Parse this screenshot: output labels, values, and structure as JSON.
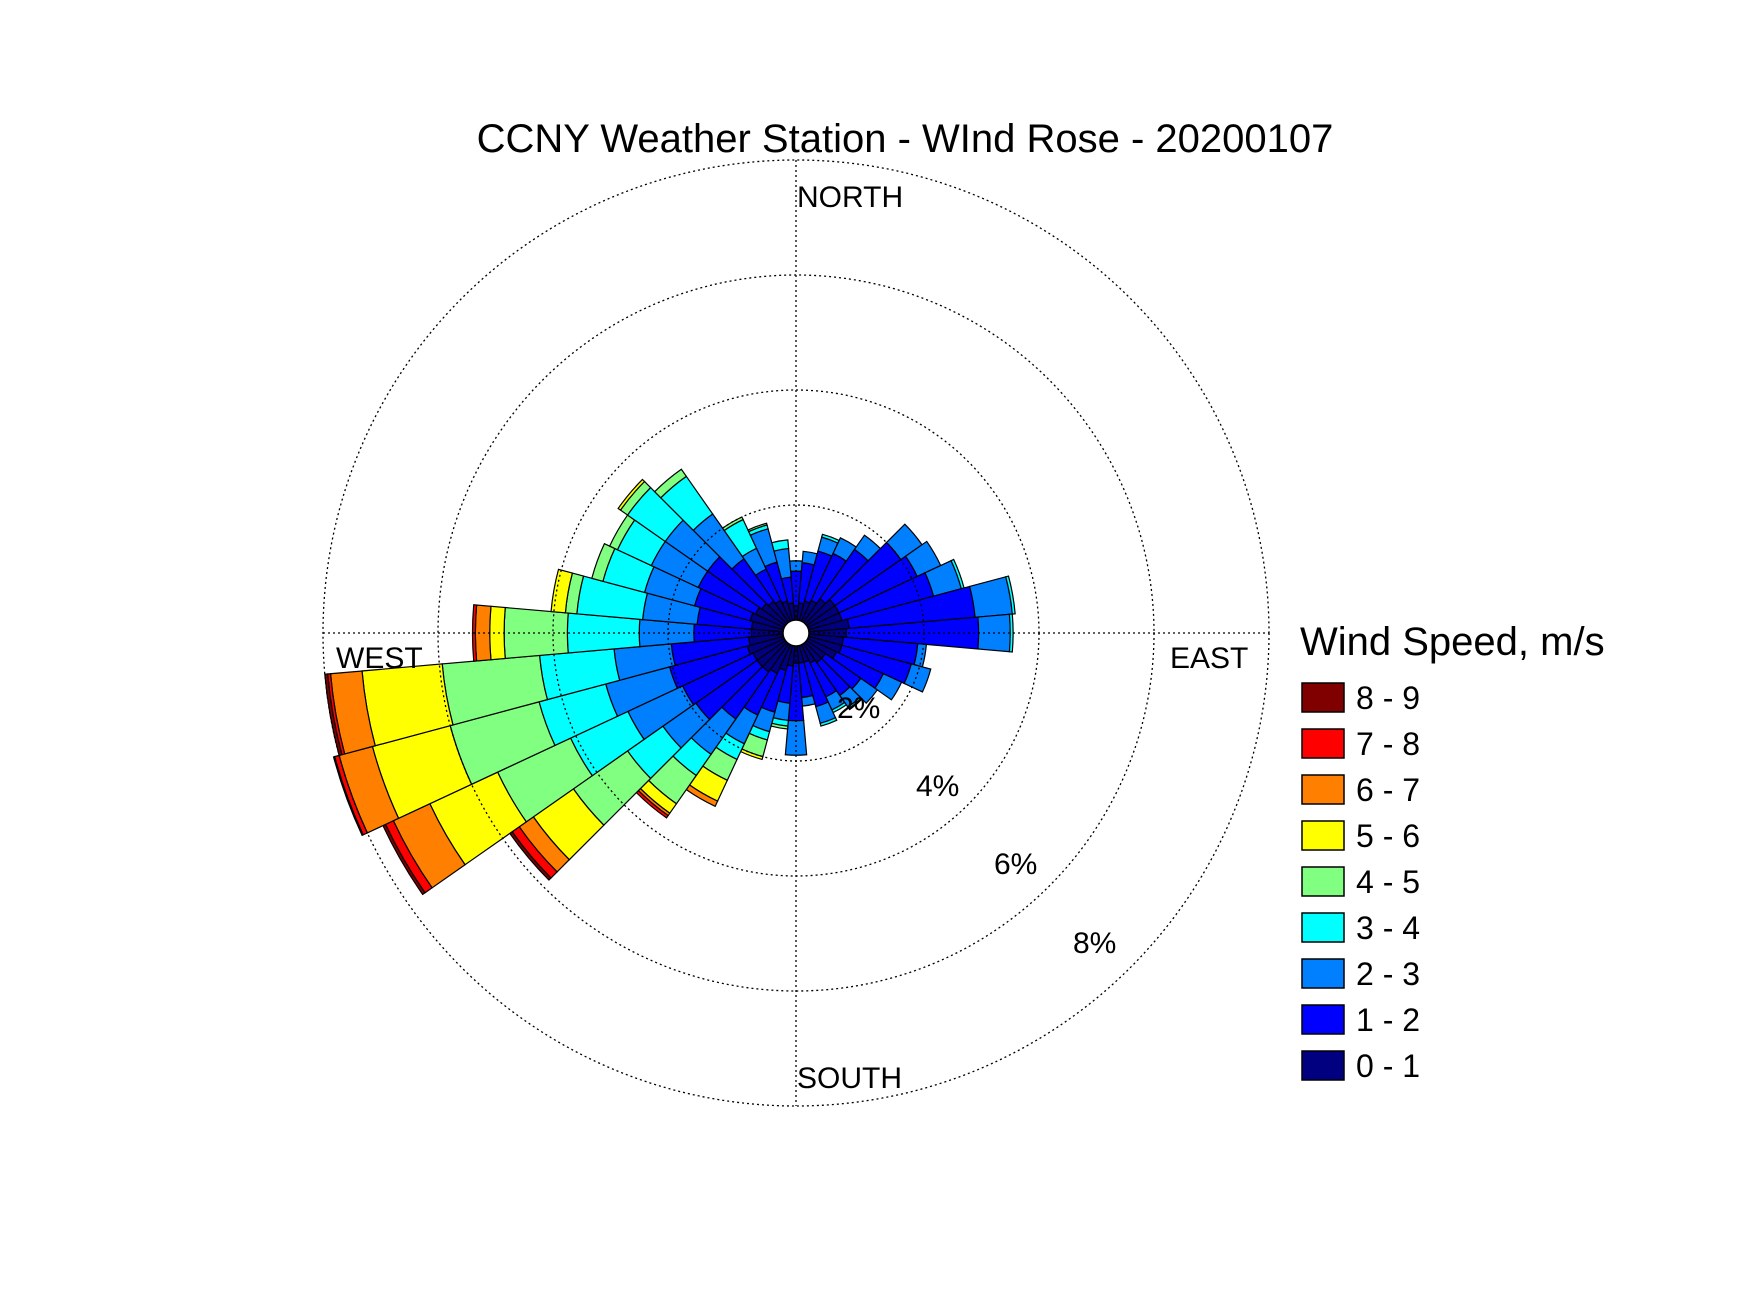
{
  "chart_data": {
    "type": "polar-stacked-bar",
    "title": "CCNY Weather Station - WInd Rose - 20200107",
    "direction_labels": {
      "north": "NORTH",
      "south": "SOUTH",
      "east": "EAST",
      "west": "WEST"
    },
    "ring_labels": [
      "2%",
      "4%",
      "6%",
      "8%"
    ],
    "rings": [
      2,
      4,
      6,
      8
    ],
    "radial_max": 8,
    "legend": {
      "title": "Wind Speed, m/s",
      "bins": [
        {
          "label": "8 - 9",
          "color": "#800000"
        },
        {
          "label": "7 - 8",
          "color": "#ff0000"
        },
        {
          "label": "6 - 7",
          "color": "#ff8000"
        },
        {
          "label": "5 - 6",
          "color": "#ffff00"
        },
        {
          "label": "4 - 5",
          "color": "#80ff80"
        },
        {
          "label": "3 - 4",
          "color": "#00ffff"
        },
        {
          "label": "2 - 3",
          "color": "#0080ff"
        },
        {
          "label": "1 - 2",
          "color": "#0000ff"
        },
        {
          "label": "0 - 1",
          "color": "#000080"
        }
      ]
    },
    "sector_width_deg": 10,
    "sectors": [
      {
        "dir": 0,
        "cum": [
          0.25,
          0.85,
          1.03
        ]
      },
      {
        "dir": 10,
        "cum": [
          0.3,
          1.0,
          1.2
        ]
      },
      {
        "dir": 20,
        "cum": [
          0.35,
          1.25,
          1.5,
          1.55
        ]
      },
      {
        "dir": 30,
        "cum": [
          0.4,
          1.3,
          1.6
        ]
      },
      {
        "dir": 40,
        "cum": [
          0.5,
          1.55,
          1.85
        ]
      },
      {
        "dir": 50,
        "cum": [
          0.6,
          2.0,
          2.45
        ]
      },
      {
        "dir": 60,
        "cum": [
          0.6,
          2.1,
          2.55
        ]
      },
      {
        "dir": 70,
        "cum": [
          0.6,
          2.25,
          2.75,
          2.8
        ]
      },
      {
        "dir": 80,
        "cum": [
          0.7,
          2.9,
          3.55,
          3.6
        ]
      },
      {
        "dir": 90,
        "cum": [
          0.65,
          2.95,
          3.5,
          3.55
        ]
      },
      {
        "dir": 100,
        "cum": [
          0.6,
          1.9,
          2.05
        ]
      },
      {
        "dir": 110,
        "cum": [
          0.6,
          1.85,
          2.2
        ]
      },
      {
        "dir": 120,
        "cum": [
          0.55,
          1.45,
          1.8
        ]
      },
      {
        "dir": 130,
        "cum": [
          0.4,
          1.15,
          1.5
        ]
      },
      {
        "dir": 140,
        "cum": [
          0.4,
          1.1,
          1.35,
          1.38,
          1.4
        ]
      },
      {
        "dir": 150,
        "cum": [
          0.35,
          1.0,
          1.25,
          1.3
        ]
      },
      {
        "dir": 160,
        "cum": [
          0.3,
          1.1,
          1.4,
          1.45
        ]
      },
      {
        "dir": 170,
        "cum": [
          0.3,
          0.9,
          1.05
        ]
      },
      {
        "dir": 180,
        "cum": [
          0.3,
          1.3,
          1.9
        ]
      },
      {
        "dir": 190,
        "cum": [
          0.35,
          1.0,
          1.3,
          1.4,
          1.45
        ]
      },
      {
        "dir": 200,
        "cum": [
          0.45,
          1.2,
          1.55,
          1.7,
          2.0,
          2.05
        ]
      },
      {
        "dir": 210,
        "cum": [
          0.55,
          1.35,
          1.9,
          2.2,
          2.6,
          3.0,
          3.1
        ]
      },
      {
        "dir": 220,
        "cum": [
          0.6,
          1.6,
          2.35,
          2.8,
          3.4,
          3.6,
          3.65,
          3.7
        ]
      },
      {
        "dir": 230,
        "cum": [
          0.6,
          1.9,
          2.6,
          3.35,
          4.5,
          5.35,
          5.65,
          5.8,
          5.85
        ]
      },
      {
        "dir": 240,
        "cum": [
          0.6,
          1.95,
          3.0,
          4.1,
          5.5,
          6.8,
          7.5,
          7.65,
          7.7
        ]
      },
      {
        "dir": 250,
        "cum": [
          0.65,
          2.05,
          3.2,
          4.4,
          6.0,
          7.4,
          8.0,
          8.08,
          8.1
        ]
      },
      {
        "dir": 260,
        "cum": [
          0.6,
          1.95,
          2.95,
          4.25,
          5.95,
          7.35,
          7.9,
          7.95,
          8.0
        ]
      },
      {
        "dir": 270,
        "cum": [
          0.55,
          1.55,
          2.5,
          3.75,
          4.85,
          5.1,
          5.35,
          5.4
        ]
      },
      {
        "dir": 280,
        "cum": [
          0.55,
          1.5,
          2.45,
          3.6,
          3.8,
          4.05
        ]
      },
      {
        "dir": 290,
        "cum": [
          0.6,
          1.6,
          2.5,
          3.25,
          3.45
        ]
      },
      {
        "dir": 300,
        "cum": [
          0.55,
          1.65,
          2.55,
          3.2,
          3.35
        ]
      },
      {
        "dir": 310,
        "cum": [
          0.5,
          1.65,
          2.55,
          3.35,
          3.5,
          3.55
        ]
      },
      {
        "dir": 320,
        "cum": [
          0.45,
          1.35,
          2.3,
          3.1,
          3.25
        ]
      },
      {
        "dir": 330,
        "cum": [
          0.4,
          1.0,
          1.4,
          1.95,
          2.0
        ]
      },
      {
        "dir": 340,
        "cum": [
          0.35,
          1.05,
          1.65,
          1.72,
          1.75
        ]
      },
      {
        "dir": 350,
        "cum": [
          0.3,
          0.75,
          1.25,
          1.4
        ]
      }
    ]
  }
}
